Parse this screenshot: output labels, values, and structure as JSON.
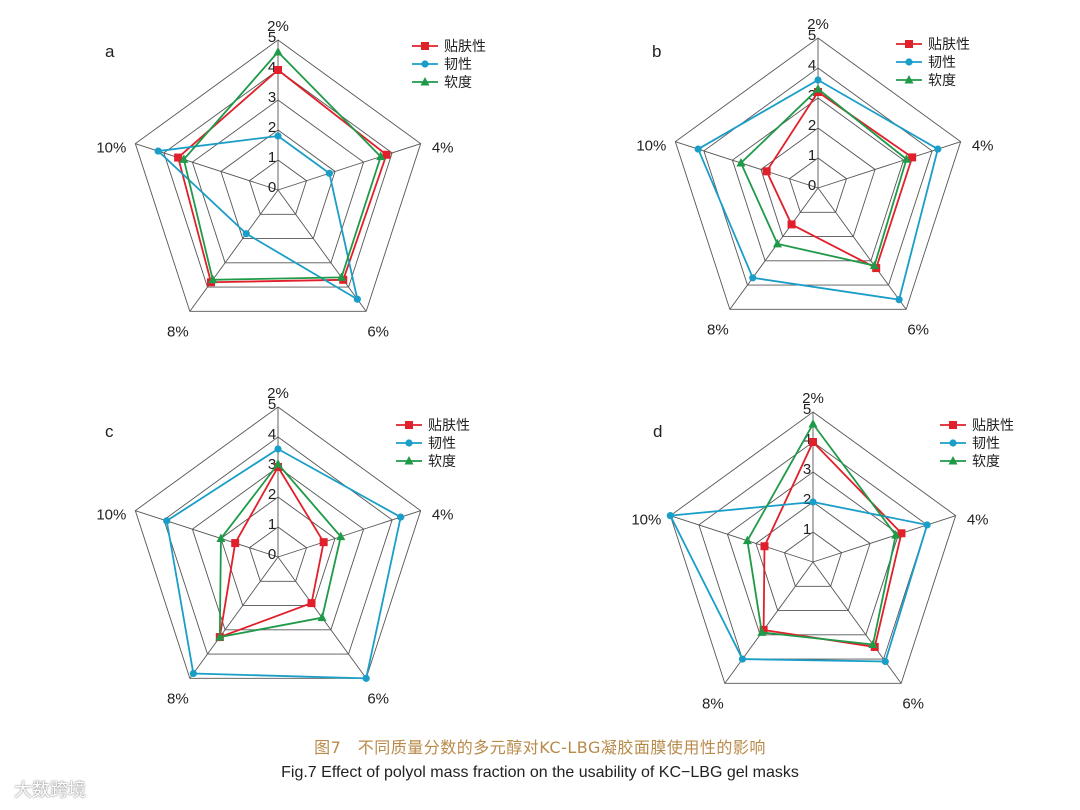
{
  "chart_data": [
    {
      "type": "radar",
      "panel_label": "a",
      "axes": [
        "2%",
        "4%",
        "6%",
        "8%",
        "10%"
      ],
      "r_ticks": [
        "0",
        "1",
        "2",
        "3",
        "4",
        "5"
      ],
      "r_range": [
        0,
        5
      ],
      "legend_position": "top-right",
      "series": [
        {
          "name": "贴肤性",
          "color": "#e0202a",
          "marker": "square",
          "values": [
            4.0,
            3.8,
            3.7,
            3.8,
            3.5
          ]
        },
        {
          "name": "韧性",
          "color": "#1a9ec8",
          "marker": "circle",
          "values": [
            1.8,
            1.8,
            4.5,
            1.8,
            4.2
          ]
        },
        {
          "name": "软度",
          "color": "#1f9a48",
          "marker": "triangle",
          "values": [
            4.6,
            3.6,
            3.6,
            3.7,
            3.3
          ]
        }
      ]
    },
    {
      "type": "radar",
      "panel_label": "b",
      "axes": [
        "2%",
        "4%",
        "6%",
        "8%",
        "10%"
      ],
      "r_ticks": [
        "0",
        "1",
        "2",
        "3",
        "4",
        "5"
      ],
      "r_range": [
        0,
        5
      ],
      "legend_position": "top-right",
      "series": [
        {
          "name": "贴肤性",
          "color": "#e0202a",
          "marker": "square",
          "values": [
            3.2,
            3.3,
            3.3,
            1.5,
            1.8
          ]
        },
        {
          "name": "韧性",
          "color": "#1a9ec8",
          "marker": "circle",
          "values": [
            3.6,
            4.2,
            4.6,
            3.7,
            4.2
          ]
        },
        {
          "name": "软度",
          "color": "#1f9a48",
          "marker": "triangle",
          "values": [
            3.3,
            3.1,
            3.2,
            2.3,
            2.7
          ]
        }
      ]
    },
    {
      "type": "radar",
      "panel_label": "c",
      "axes": [
        "2%",
        "4%",
        "6%",
        "8%",
        "10%"
      ],
      "r_ticks": [
        "0",
        "1",
        "2",
        "3",
        "4",
        "5"
      ],
      "r_range": [
        0,
        5
      ],
      "legend_position": "top-right",
      "series": [
        {
          "name": "贴肤性",
          "color": "#e0202a",
          "marker": "square",
          "values": [
            3.0,
            1.6,
            1.9,
            3.3,
            1.5
          ]
        },
        {
          "name": "韧性",
          "color": "#1a9ec8",
          "marker": "circle",
          "values": [
            3.6,
            4.3,
            5.0,
            4.8,
            3.9
          ]
        },
        {
          "name": "软度",
          "color": "#1f9a48",
          "marker": "triangle",
          "values": [
            3.1,
            2.2,
            2.5,
            3.3,
            2.0
          ]
        }
      ]
    },
    {
      "type": "radar",
      "panel_label": "d",
      "axes": [
        "2%",
        "4%",
        "6%",
        "8%",
        "10%"
      ],
      "r_ticks": [
        "1",
        "2",
        "3",
        "4",
        "5"
      ],
      "r_range": [
        0,
        5
      ],
      "legend_position": "top-right",
      "series": [
        {
          "name": "贴肤性",
          "color": "#e0202a",
          "marker": "square",
          "values": [
            4.0,
            3.1,
            3.5,
            2.8,
            1.7
          ]
        },
        {
          "name": "韧性",
          "color": "#1a9ec8",
          "marker": "circle",
          "values": [
            2.0,
            4.0,
            4.1,
            4.0,
            5.0
          ]
        },
        {
          "name": "软度",
          "color": "#1f9a48",
          "marker": "triangle",
          "values": [
            4.6,
            2.9,
            3.4,
            2.9,
            2.3
          ]
        }
      ]
    }
  ],
  "caption": {
    "cn": "图7　不同质量分数的多元醇对KC-LBG凝胶面膜使用性的影响",
    "en": "Fig.7 Effect of polyol mass fraction on the usability of KC−LBG gel masks"
  },
  "watermark": "大数跨境"
}
